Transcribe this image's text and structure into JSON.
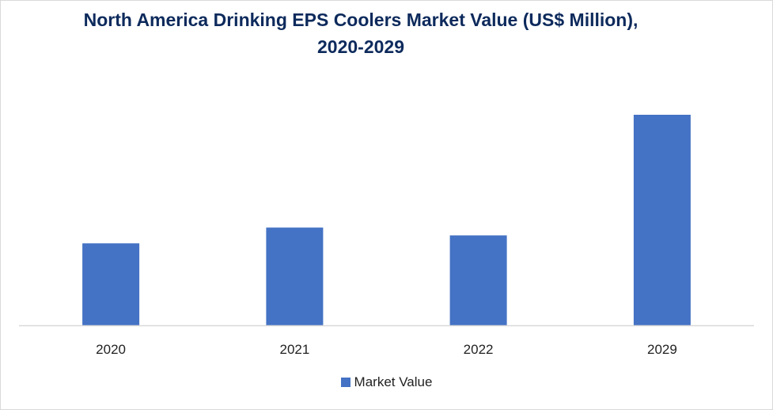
{
  "chart_data": {
    "type": "bar",
    "title": "North America Drinking EPS Coolers Market Value (US$ Million), 2020-2029",
    "categories": [
      "2020",
      "2021",
      "2022",
      "2029"
    ],
    "series": [
      {
        "name": "Market Value",
        "values": [
          104,
          124,
          114,
          267
        ]
      }
    ],
    "xlabel": "",
    "ylabel": "",
    "ylim": [
      0,
      300
    ],
    "grid": false,
    "legend": "bottom",
    "colors": {
      "bar": "#4472c4",
      "axis": "#d9d9d9",
      "title": "#0d2a5c"
    }
  }
}
